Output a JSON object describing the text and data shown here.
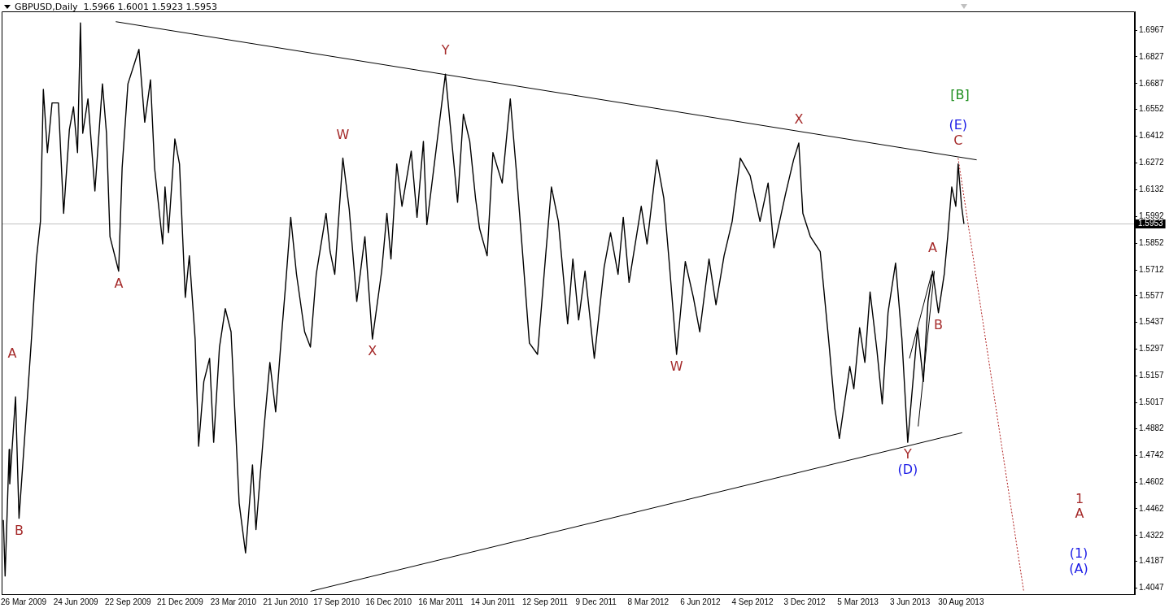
{
  "chart_data": {
    "type": "line",
    "title": "GBPUSD,Daily  1.5966 1.6001 1.5923 1.5953",
    "xlim": [
      "2009-02-16",
      "2014-06-26"
    ],
    "ylim": [
      1.4015,
      1.7065
    ],
    "xticks": [
      {
        "value": "2009-03-26",
        "label": "26 Mar 2009"
      },
      {
        "value": "2009-06-24",
        "label": "24 Jun 2009"
      },
      {
        "value": "2009-09-22",
        "label": "22 Sep 2009"
      },
      {
        "value": "2009-12-21",
        "label": "21 Dec 2009"
      },
      {
        "value": "2010-03-23",
        "label": "23 Mar 2010"
      },
      {
        "value": "2010-06-21",
        "label": "21 Jun 2010"
      },
      {
        "value": "2010-09-17",
        "label": "17 Sep 2010"
      },
      {
        "value": "2010-12-16",
        "label": "16 Dec 2010"
      },
      {
        "value": "2011-03-16",
        "label": "16 Mar 2011"
      },
      {
        "value": "2011-06-14",
        "label": "14 Jun 2011"
      },
      {
        "value": "2011-09-12",
        "label": "12 Sep 2011"
      },
      {
        "value": "2011-12-09",
        "label": "9 Dec 2011"
      },
      {
        "value": "2012-03-08",
        "label": "8 Mar 2012"
      },
      {
        "value": "2012-06-06",
        "label": "6 Jun 2012"
      },
      {
        "value": "2012-09-04",
        "label": "4 Sep 2012"
      },
      {
        "value": "2012-12-03",
        "label": "3 Dec 2012"
      },
      {
        "value": "2013-03-05",
        "label": "5 Mar 2013"
      },
      {
        "value": "2013-06-03",
        "label": "3 Jun 2013"
      },
      {
        "value": "2013-08-30",
        "label": "30 Aug 2013"
      }
    ],
    "yticks": [
      {
        "value": 1.4047,
        "label": "1.4047"
      },
      {
        "value": 1.4187,
        "label": "1.4187"
      },
      {
        "value": 1.4322,
        "label": "1.4322"
      },
      {
        "value": 1.4462,
        "label": "1.4462"
      },
      {
        "value": 1.4602,
        "label": "1.4602"
      },
      {
        "value": 1.4742,
        "label": "1.4742"
      },
      {
        "value": 1.4882,
        "label": "1.4882"
      },
      {
        "value": 1.5017,
        "label": "1.5017"
      },
      {
        "value": 1.5157,
        "label": "1.5157"
      },
      {
        "value": 1.5297,
        "label": "1.5297"
      },
      {
        "value": 1.5437,
        "label": "1.5437"
      },
      {
        "value": 1.5577,
        "label": "1.5577"
      },
      {
        "value": 1.5712,
        "label": "1.5712"
      },
      {
        "value": 1.5852,
        "label": "1.5852"
      },
      {
        "value": 1.5992,
        "label": "1.5992"
      },
      {
        "value": 1.6132,
        "label": "1.6132"
      },
      {
        "value": 1.6272,
        "label": "1.6272"
      },
      {
        "value": 1.6412,
        "label": "1.6412"
      },
      {
        "value": 1.6552,
        "label": "1.6552"
      },
      {
        "value": 1.6687,
        "label": "1.6687"
      },
      {
        "value": 1.6827,
        "label": "1.6827"
      },
      {
        "value": 1.6967,
        "label": "1.6967"
      }
    ],
    "grid": false,
    "legend": false,
    "series": [
      {
        "color": "#000000",
        "x": [
          "2009-02-19",
          "2009-02-22",
          "2009-03-01",
          "2009-03-02",
          "2009-03-12",
          "2009-03-18",
          "2009-03-29",
          "2009-04-08",
          "2009-04-17",
          "2009-04-24",
          "2009-04-29",
          "2009-05-06",
          "2009-05-14",
          "2009-05-25",
          "2009-06-03",
          "2009-06-13",
          "2009-06-20",
          "2009-06-27",
          "2009-07-02",
          "2009-07-06",
          "2009-07-15",
          "2009-07-27",
          "2009-08-09",
          "2009-08-16",
          "2009-08-22",
          "2009-09-06",
          "2009-09-12",
          "2009-09-22",
          "2009-10-11",
          "2009-10-21",
          "2009-10-31",
          "2009-11-07",
          "2009-11-21",
          "2009-11-25",
          "2009-12-01",
          "2009-12-12",
          "2009-12-20",
          "2009-12-30",
          "2010-01-06",
          "2010-01-16",
          "2010-01-22",
          "2010-01-31",
          "2010-02-10",
          "2010-02-17",
          "2010-02-27",
          "2010-03-09",
          "2010-03-19",
          "2010-04-02",
          "2010-04-13",
          "2010-04-25",
          "2010-05-01",
          "2010-05-15",
          "2010-05-25",
          "2010-06-04",
          "2010-06-14",
          "2010-06-21",
          "2010-06-30",
          "2010-07-10",
          "2010-07-24",
          "2010-08-03",
          "2010-08-13",
          "2010-08-30",
          "2010-09-06",
          "2010-09-14",
          "2010-09-28",
          "2010-10-09",
          "2010-10-22",
          "2010-11-05",
          "2010-11-18",
          "2010-12-04",
          "2010-12-13",
          "2010-12-20",
          "2010-12-30",
          "2011-01-08",
          "2011-01-24",
          "2011-02-03",
          "2011-02-14",
          "2011-02-20",
          "2011-03-09",
          "2011-03-24",
          "2011-04-02",
          "2011-04-14",
          "2011-04-24",
          "2011-05-05",
          "2011-05-15",
          "2011-05-22",
          "2011-06-04",
          "2011-06-14",
          "2011-06-30",
          "2011-07-14",
          "2011-07-24",
          "2011-08-03",
          "2011-08-16",
          "2011-08-30",
          "2011-09-13",
          "2011-09-23",
          "2011-10-05",
          "2011-10-21",
          "2011-10-30",
          "2011-11-09",
          "2011-11-20",
          "2011-12-06",
          "2011-12-23",
          "2012-01-03",
          "2012-01-16",
          "2012-01-25",
          "2012-02-04",
          "2012-02-25",
          "2012-03-06",
          "2012-03-23",
          "2012-04-04",
          "2012-04-14",
          "2012-04-26",
          "2012-05-11",
          "2012-05-25",
          "2012-06-05",
          "2012-06-21",
          "2012-07-03",
          "2012-07-17",
          "2012-07-31",
          "2012-08-14",
          "2012-08-31",
          "2012-09-17",
          "2012-10-01",
          "2012-10-11",
          "2012-10-31",
          "2012-11-14",
          "2012-11-23",
          "2012-11-30",
          "2012-12-13",
          "2012-12-30",
          "2013-01-14",
          "2013-01-24",
          "2013-02-01",
          "2013-02-19",
          "2013-02-26",
          "2013-03-08",
          "2013-03-17",
          "2013-03-26",
          "2013-04-07",
          "2013-04-16",
          "2013-04-26",
          "2013-05-09",
          "2013-05-20",
          "2013-05-30",
          "2013-06-16",
          "2013-06-26",
          "2013-07-04",
          "2013-07-12",
          "2013-07-22",
          "2013-08-01",
          "2013-08-07",
          "2013-08-14",
          "2013-08-21",
          "2013-08-25",
          "2013-08-31",
          "2013-09-04"
        ],
        "values": [
          1.4403,
          1.411,
          1.4772,
          1.4592,
          1.5048,
          1.4412,
          1.4889,
          1.5329,
          1.5769,
          1.5966,
          1.6657,
          1.6326,
          1.6586,
          1.6586,
          1.6008,
          1.6448,
          1.6565,
          1.6326,
          1.7005,
          1.6427,
          1.6607,
          1.6125,
          1.6686,
          1.6427,
          1.5886,
          1.5706,
          1.6246,
          1.6686,
          1.6866,
          1.6485,
          1.6707,
          1.6246,
          1.5848,
          1.6146,
          1.5907,
          1.6397,
          1.6267,
          1.5568,
          1.5786,
          1.535,
          1.4789,
          1.5128,
          1.5249,
          1.481,
          1.5308,
          1.5509,
          1.5388,
          1.4491,
          1.4231,
          1.4692,
          1.4353,
          1.4889,
          1.5228,
          1.4969,
          1.5367,
          1.5626,
          1.5987,
          1.5689,
          1.5388,
          1.5308,
          1.5689,
          1.6008,
          1.5807,
          1.5689,
          1.6297,
          1.6029,
          1.5547,
          1.5886,
          1.535,
          1.5706,
          1.6008,
          1.5769,
          1.6267,
          1.6045,
          1.6334,
          1.5987,
          1.6385,
          1.5949,
          1.6368,
          1.6737,
          1.6448,
          1.6066,
          1.6527,
          1.6385,
          1.6087,
          1.5928,
          1.5786,
          1.6326,
          1.6167,
          1.6607,
          1.6246,
          1.5848,
          1.5329,
          1.527,
          1.5786,
          1.6146,
          1.5966,
          1.543,
          1.5769,
          1.545,
          1.5706,
          1.5249,
          1.5727,
          1.5907,
          1.5689,
          1.5987,
          1.5647,
          1.6045,
          1.5848,
          1.6288,
          1.6087,
          1.5727,
          1.527,
          1.5756,
          1.5568,
          1.5388,
          1.5769,
          1.553,
          1.5786,
          1.5966,
          1.6297,
          1.6205,
          1.5966,
          1.6167,
          1.5828,
          1.6108,
          1.6288,
          1.6376,
          1.6008,
          1.5886,
          1.5807,
          1.5329,
          1.499,
          1.483,
          1.5207,
          1.509,
          1.5409,
          1.5228,
          1.5597,
          1.5287,
          1.5011,
          1.5488,
          1.5748,
          1.535,
          1.481,
          1.5409,
          1.5128,
          1.5547,
          1.5706,
          1.5488,
          1.5689,
          1.5886,
          1.6146,
          1.6045,
          1.6267,
          1.6045,
          1.5953
        ]
      },
      {
        "type": "line",
        "color": "#000000",
        "x": [
          "2009-09-01",
          "2013-09-26"
        ],
        "values": [
          1.7011,
          1.6288
        ]
      },
      {
        "type": "line",
        "color": "#000000",
        "x": [
          "2010-08-03",
          "2013-09-01"
        ],
        "values": [
          1.403,
          1.486
        ]
      },
      {
        "type": "line",
        "color": "#000000",
        "x": [
          "2013-06-02",
          "2013-07-10"
        ],
        "values": [
          1.5249,
          1.5689
        ]
      },
      {
        "type": "line",
        "color": "#000000",
        "x": [
          "2013-06-17",
          "2013-07-15"
        ],
        "values": [
          1.4893,
          1.5706
        ]
      },
      {
        "type": "line",
        "color": "#b22222",
        "line_style": "dotted",
        "x": [
          "2013-08-25",
          "2013-12-16"
        ],
        "values": [
          1.6297,
          1.4034
        ]
      }
    ],
    "ref_lines": [
      {
        "axis": "y",
        "value": 1.5953,
        "label": "1.5953",
        "color": "#c0c0c0"
      }
    ],
    "annotations": [
      "A",
      {
        "text": "B",
        "x": "2009-03-18",
        "y": 1.4412
      },
      {
        "text": "A",
        "x": "2009-09-06",
        "y": 1.5706
      },
      {
        "text": "W",
        "x": "2010-09-28",
        "y": 1.6297
      },
      {
        "text": "X",
        "x": "2010-11-18",
        "y": 1.535
      },
      {
        "text": "Y",
        "x": "2011-03-24",
        "y": 1.6737
      },
      {
        "text": "W",
        "x": "2012-04-26",
        "y": 1.527
      },
      {
        "text": "X",
        "x": "2012-11-23",
        "y": 1.6376
      },
      {
        "text": "A",
        "x": "2013-07-12",
        "y": 1.5706
      },
      {
        "text": "B",
        "x": "2013-07-22",
        "y": 1.5488
      },
      {
        "text": "Y",
        "x": "2013-05-30",
        "y": 1.481
      },
      {
        "text": "(D)",
        "x": "2013-05-30",
        "y": 1.481
      },
      "[B]",
      {
        "text": "(E)",
        "x": "2013-08-25",
        "y": 1.6267
      },
      {
        "text": "C",
        "x": "2013-08-25",
        "y": 1.6267
      },
      "1",
      "A",
      "(1)",
      "(A)"
    ]
  }
}
